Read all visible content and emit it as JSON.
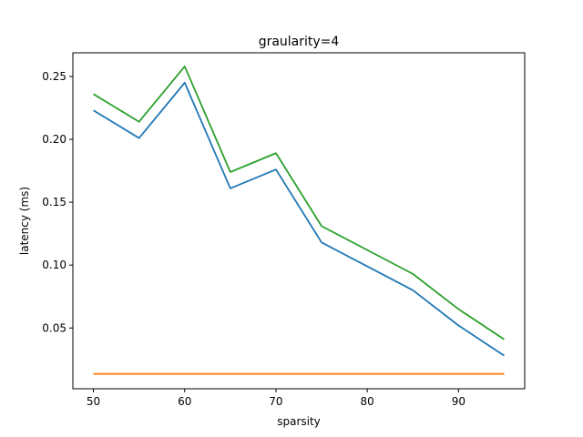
{
  "chart_data": {
    "type": "line",
    "title": "graularity=4",
    "xlabel": "sparsity",
    "ylabel": "latency (ms)",
    "xlim": [
      47.75,
      97.25
    ],
    "ylim": [
      0.0017,
      0.2688
    ],
    "xticks": [
      50,
      60,
      70,
      80,
      90
    ],
    "yticks": [
      0.05,
      0.1,
      0.15,
      0.2,
      0.25
    ],
    "xtick_labels": [
      "50",
      "60",
      "70",
      "80",
      "90"
    ],
    "ytick_labels": [
      "0.05",
      "0.10",
      "0.15",
      "0.20",
      "0.25"
    ],
    "grid": false,
    "legend": "none",
    "x": [
      50,
      55,
      60,
      65,
      70,
      75,
      80,
      85,
      90,
      95
    ],
    "series": [
      {
        "color": "#1f77b4",
        "values": [
          0.223,
          0.201,
          0.245,
          0.161,
          0.176,
          0.118,
          0.099,
          0.08,
          0.052,
          0.028
        ]
      },
      {
        "color": "#ff7f0e",
        "values": [
          0.0135,
          0.0135,
          0.0135,
          0.0135,
          0.0135,
          0.0135,
          0.0135,
          0.0135,
          0.0135,
          0.0135
        ]
      },
      {
        "color": "#2ca02c",
        "values": [
          0.236,
          0.214,
          0.258,
          0.174,
          0.189,
          0.131,
          0.112,
          0.093,
          0.065,
          0.041
        ]
      }
    ]
  }
}
